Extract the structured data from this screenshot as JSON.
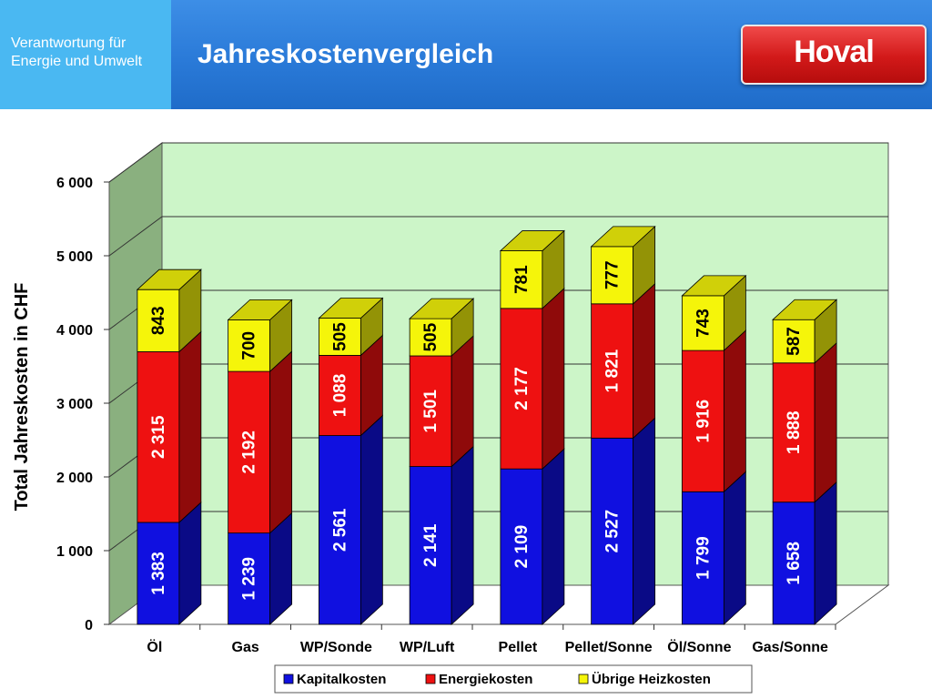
{
  "header": {
    "subtitle": "Verantwortung für\nEnergie und Umwelt",
    "title": "Jahreskostenvergleich",
    "logo": "Hoval"
  },
  "chart_data": {
    "type": "bar",
    "stacked": true,
    "three_d": true,
    "title": "Jahreskostenvergleich",
    "ylabel": "Total Jahreskosten in CHF",
    "xlabel": "",
    "ylim": [
      0,
      6000
    ],
    "yticks": [
      0,
      1000,
      2000,
      3000,
      4000,
      5000,
      6000
    ],
    "ytick_labels": [
      "0",
      "1 000",
      "2 000",
      "3 000",
      "4 000",
      "5 000",
      "6 000"
    ],
    "categories": [
      "Öl",
      "Gas",
      "WP/Sonde",
      "WP/Luft",
      "Pellet",
      "Pellet/Sonne",
      "Öl/Sonne",
      "Gas/Sonne"
    ],
    "series": [
      {
        "name": "Kapitalkosten",
        "color": "#1010e0",
        "values": [
          1383,
          1239,
          2561,
          2141,
          2109,
          2527,
          1799,
          1658
        ],
        "labels": [
          "1 383",
          "1 239",
          "2 561",
          "2 141",
          "2 109",
          "2 527",
          "1 799",
          "1 658"
        ]
      },
      {
        "name": "Energiekosten",
        "color": "#ee1111",
        "values": [
          2315,
          2192,
          1088,
          1501,
          2177,
          1821,
          1916,
          1888
        ],
        "labels": [
          "2 315",
          "2 192",
          "1 088",
          "1 501",
          "2 177",
          "1 821",
          "1 916",
          "1 888"
        ]
      },
      {
        "name": "Übrige Heizkosten",
        "color": "#f5f50a",
        "values": [
          843,
          700,
          505,
          505,
          781,
          777,
          743,
          587
        ],
        "labels": [
          "843",
          "700",
          "505",
          "505",
          "781",
          "777",
          "743",
          "587"
        ]
      }
    ],
    "grid": true,
    "legend_position": "bottom",
    "wall_color": "#ccf5c8",
    "side_wall_color": "#8ab07f"
  }
}
